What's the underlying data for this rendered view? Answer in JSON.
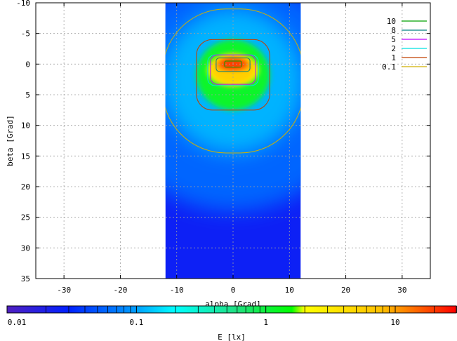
{
  "chart_data": {
    "type": "heatmap",
    "xlabel": "alpha [Grad]",
    "ylabel": "beta [Grad]",
    "xlim": [
      -35,
      35
    ],
    "ylim": [
      -10,
      35
    ],
    "y_inverted": true,
    "x_ticks": [
      -30,
      -20,
      -10,
      0,
      10,
      20,
      30
    ],
    "y_ticks": [
      -10,
      -5,
      0,
      5,
      10,
      15,
      20,
      25,
      30,
      35
    ],
    "grid": true,
    "data_extent_x": [
      -12,
      12
    ],
    "hotspot": {
      "alpha": 0,
      "beta": 0,
      "value_lx": 20
    },
    "legend": {
      "placement": "top-right",
      "entries": [
        {
          "label": "10",
          "color": "#00a000"
        },
        {
          "label": "8",
          "color": "#008080"
        },
        {
          "label": "5",
          "color": "#c000ff"
        },
        {
          "label": "2",
          "color": "#00e0e0"
        },
        {
          "label": "1",
          "color": "#c04000"
        },
        {
          "label": "0.1",
          "color": "#d0b000"
        }
      ]
    },
    "contours": [
      {
        "level": 0.1,
        "color": "#d0b000",
        "alpha_half_width": 12.5,
        "beta_top": -9,
        "beta_bottom": 14.5
      },
      {
        "level": 1,
        "color": "#c04000",
        "alpha_half_width": 6.5,
        "beta_top": -4,
        "beta_bottom": 7.5
      },
      {
        "level": 2,
        "color": "#00e0e0",
        "alpha_half_width": 4.5,
        "beta_top": -1.5,
        "beta_bottom": 3.5
      },
      {
        "level": 5,
        "color": "#c000ff",
        "alpha_half_width": 4.0,
        "beta_top": -1.5,
        "beta_bottom": 3.3
      },
      {
        "level": 8,
        "color": "#008080",
        "alpha_half_width": 3.0,
        "beta_top": -1.0,
        "beta_bottom": 1.2
      },
      {
        "level": 10,
        "color": "#00a000",
        "alpha_half_width": 1.5,
        "beta_top": -0.5,
        "beta_bottom": 0.5
      }
    ],
    "colorbar": {
      "label": "E [lx]",
      "scale": "log",
      "range": [
        0.01,
        30
      ],
      "tick_labels": [
        {
          "value": 0.01,
          "label": "0.01"
        },
        {
          "value": 0.1,
          "label": "0.1"
        },
        {
          "value": 1,
          "label": "1"
        },
        {
          "value": 10,
          "label": "10"
        }
      ],
      "stops": [
        {
          "value": 0.01,
          "color": "#5020c0"
        },
        {
          "value": 0.03,
          "color": "#0020ff"
        },
        {
          "value": 0.1,
          "color": "#00a0ff"
        },
        {
          "value": 0.2,
          "color": "#00ffff"
        },
        {
          "value": 0.6,
          "color": "#20e080"
        },
        {
          "value": 1.6,
          "color": "#00ff00"
        },
        {
          "value": 2.0,
          "color": "#ffff00"
        },
        {
          "value": 8,
          "color": "#ffc000"
        },
        {
          "value": 30,
          "color": "#ff0000"
        }
      ]
    }
  }
}
